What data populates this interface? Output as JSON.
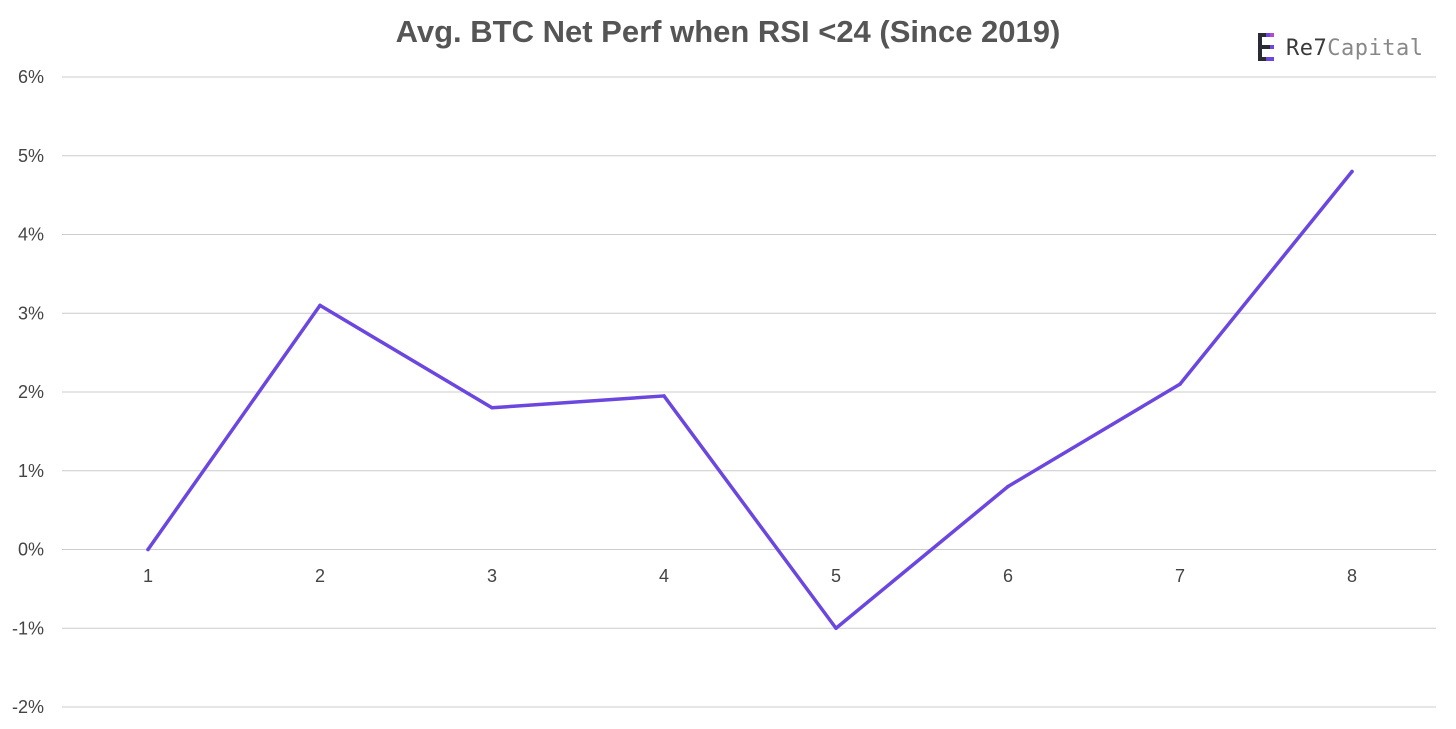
{
  "chart_data": {
    "type": "line",
    "title": "Avg. BTC Net Perf when RSI <24 (Since 2019)",
    "xlabel": "",
    "ylabel": "",
    "categories": [
      "1",
      "2",
      "3",
      "4",
      "5",
      "6",
      "7",
      "8"
    ],
    "series": [
      {
        "values": [
          0.0,
          3.1,
          1.8,
          1.95,
          -1.0,
          0.8,
          2.1,
          4.8
        ]
      }
    ],
    "ylim": [
      -2,
      6
    ],
    "yticks": [
      6,
      5,
      4,
      3,
      2,
      1,
      0,
      -1,
      -2
    ],
    "ytick_labels": [
      "6%",
      "5%",
      "4%",
      "3%",
      "2%",
      "1%",
      "0%",
      "-1%",
      "-2%"
    ],
    "grid": true,
    "legend": "none",
    "line_color": "#6b47e0"
  },
  "logo": {
    "brand_bold": "Re7",
    "brand_light": "Capital",
    "colors": [
      "#2b2b35",
      "#6b47e0",
      "#b04bd0"
    ]
  }
}
